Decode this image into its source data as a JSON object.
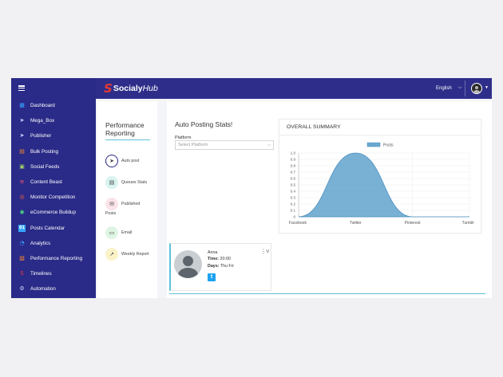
{
  "app": {
    "name_bold": "Socialy",
    "name_light": "Hub",
    "logo_glyph": "S"
  },
  "header": {
    "language": "English",
    "chevron": "⌄"
  },
  "sidebar": {
    "items": [
      {
        "label": "Dashboard",
        "icon": "dashboard-icon",
        "glyph": "▦",
        "color": "#38a7ff"
      },
      {
        "label": "Mega_Box",
        "icon": "send-icon",
        "glyph": "➤",
        "color": "#cfd3ff"
      },
      {
        "label": "Publisher",
        "icon": "paper-plane-icon",
        "glyph": "➤",
        "color": "#cfd3ff"
      },
      {
        "label": "Bulk Posting",
        "icon": "bulk-upload-icon",
        "glyph": "▤",
        "color": "#ff8a2a"
      },
      {
        "label": "Social Feeds",
        "icon": "feeds-icon",
        "glyph": "▣",
        "color": "#9fd36b"
      },
      {
        "label": "Content Beast",
        "icon": "content-icon",
        "glyph": "≡",
        "color": "#ff5c7a"
      },
      {
        "label": "Monitor Competition",
        "icon": "monitor-icon",
        "glyph": "◎",
        "color": "#ff6a3d"
      },
      {
        "label": "eCommerce Buildup",
        "icon": "ecommerce-icon",
        "glyph": "◉",
        "color": "#4bd58a"
      },
      {
        "label": "Posts Calendar",
        "icon": "calendar-icon",
        "glyph": "01",
        "color": "#38a7ff"
      },
      {
        "label": "Analytics",
        "icon": "analytics-icon",
        "glyph": "◔",
        "color": "#38a7ff"
      },
      {
        "label": "Performance Reporting",
        "icon": "report-icon",
        "glyph": "▧",
        "color": "#ff8a2a"
      },
      {
        "label": "Timelines",
        "icon": "timeline-icon",
        "glyph": "S",
        "color": "#ff3b3b"
      },
      {
        "label": "Automation",
        "icon": "automation-icon",
        "glyph": "⚙",
        "color": "#cfd3ff"
      }
    ]
  },
  "report_panel": {
    "title": "Performance Reporting",
    "items": [
      {
        "label": "Auto post",
        "icon": "send-icon",
        "glyph": "➤",
        "bg": "#ffffff",
        "border": "#2a2a88"
      },
      {
        "label": "Queues Stats",
        "icon": "queue-icon",
        "glyph": "▤",
        "bg": "#d9f3ef",
        "border": "#d9f3ef"
      },
      {
        "label": "Published",
        "label2": "Posts",
        "icon": "mail-icon",
        "glyph": "✉",
        "bg": "#fbe3ea",
        "border": "#fbe3ea"
      },
      {
        "label": "Email",
        "icon": "email-icon",
        "glyph": "▭",
        "bg": "#dff5e3",
        "border": "#dff5e3"
      },
      {
        "label": "Weekly Report",
        "icon": "chart-icon",
        "glyph": "↗",
        "bg": "#fbf2c8",
        "border": "#fbf2c8"
      }
    ]
  },
  "auto_posting": {
    "title": "Auto Posting Stats!",
    "platform_label": "Platform",
    "platform_placeholder": "Select Platform"
  },
  "summary": {
    "title": "OVERALL SUMMARY"
  },
  "chart_data": {
    "type": "area",
    "categories": [
      "Facebook",
      "Twitter",
      "Pinterest",
      "Tumblr"
    ],
    "series": [
      {
        "name": "Posts",
        "values": [
          0,
          1,
          0,
          0
        ]
      }
    ],
    "ylim": [
      0,
      1
    ],
    "yticks": [
      "0",
      "0.1",
      "0.2",
      "0.3",
      "0.4",
      "0.5",
      "0.6",
      "0.7",
      "0.8",
      "0.9",
      "1.0"
    ],
    "grid": true,
    "legend": "top-center",
    "color": "#6aa8cf"
  },
  "profile": {
    "name": "Anna",
    "time_label": "Time:",
    "time": "20:00",
    "days_label": "Days:",
    "days": "Thu Fri",
    "network_glyph": "t",
    "menu_glyph": "⋮˅"
  }
}
